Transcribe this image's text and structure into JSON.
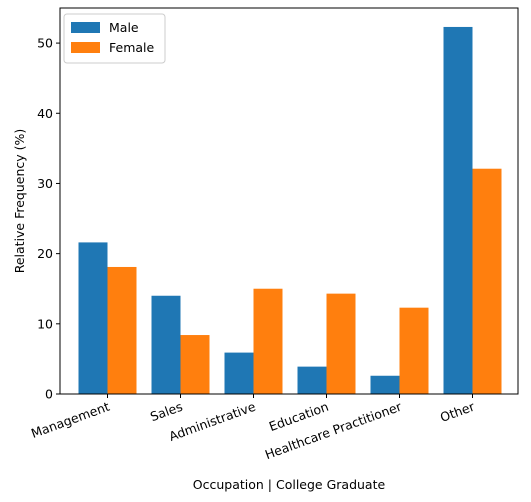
{
  "chart_data": {
    "type": "bar",
    "title": "",
    "xlabel": "Occupation | College Graduate",
    "ylabel": "Relative Frequency (%)",
    "categories": [
      "Management",
      "Sales",
      "Administrative",
      "Education",
      "Healthcare Practitioner",
      "Other"
    ],
    "series": [
      {
        "name": "Male",
        "color": "#1f77b4",
        "values": [
          21.6,
          14.0,
          5.9,
          3.9,
          2.6,
          52.3
        ]
      },
      {
        "name": "Female",
        "color": "#ff7f0e",
        "values": [
          18.1,
          8.4,
          15.0,
          14.3,
          12.3,
          32.1
        ]
      }
    ],
    "ylim": [
      0,
      55
    ],
    "yticks": [
      0,
      10,
      20,
      30,
      40,
      50
    ],
    "grid": false,
    "legend_position": "top-left"
  }
}
